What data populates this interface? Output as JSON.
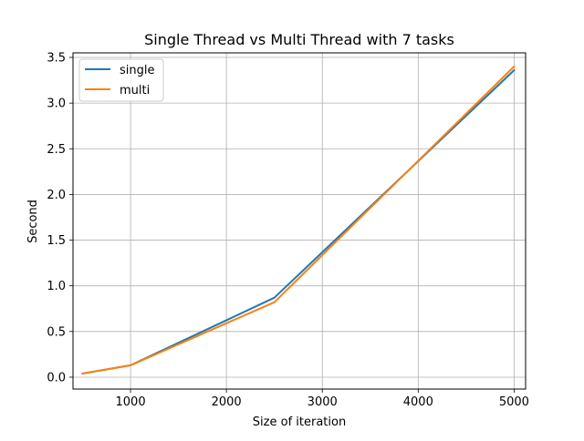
{
  "chart_data": {
    "type": "line",
    "title": "Single Thread vs Multi Thread with 7 tasks",
    "xlabel": "Size of iteration",
    "ylabel": "Second",
    "xlim": [
      400,
      5120
    ],
    "ylim": [
      -0.13,
      3.55
    ],
    "xticks": [
      1000,
      2000,
      3000,
      4000,
      5000
    ],
    "yticks": [
      0.0,
      0.5,
      1.0,
      1.5,
      2.0,
      2.5,
      3.0,
      3.5
    ],
    "xtick_labels": [
      "1000",
      "2000",
      "3000",
      "4000",
      "5000"
    ],
    "ytick_labels": [
      "0.0",
      "0.5",
      "1.0",
      "1.5",
      "2.0",
      "2.5",
      "3.0",
      "3.5"
    ],
    "grid": true,
    "legend_position": "upper-left",
    "x": [
      500,
      1000,
      2500,
      5000
    ],
    "series": [
      {
        "name": "single",
        "color": "#1f77b4",
        "values": [
          0.04,
          0.13,
          0.87,
          3.36
        ]
      },
      {
        "name": "multi",
        "color": "#ff7f0e",
        "values": [
          0.04,
          0.13,
          0.82,
          3.4
        ]
      }
    ]
  }
}
